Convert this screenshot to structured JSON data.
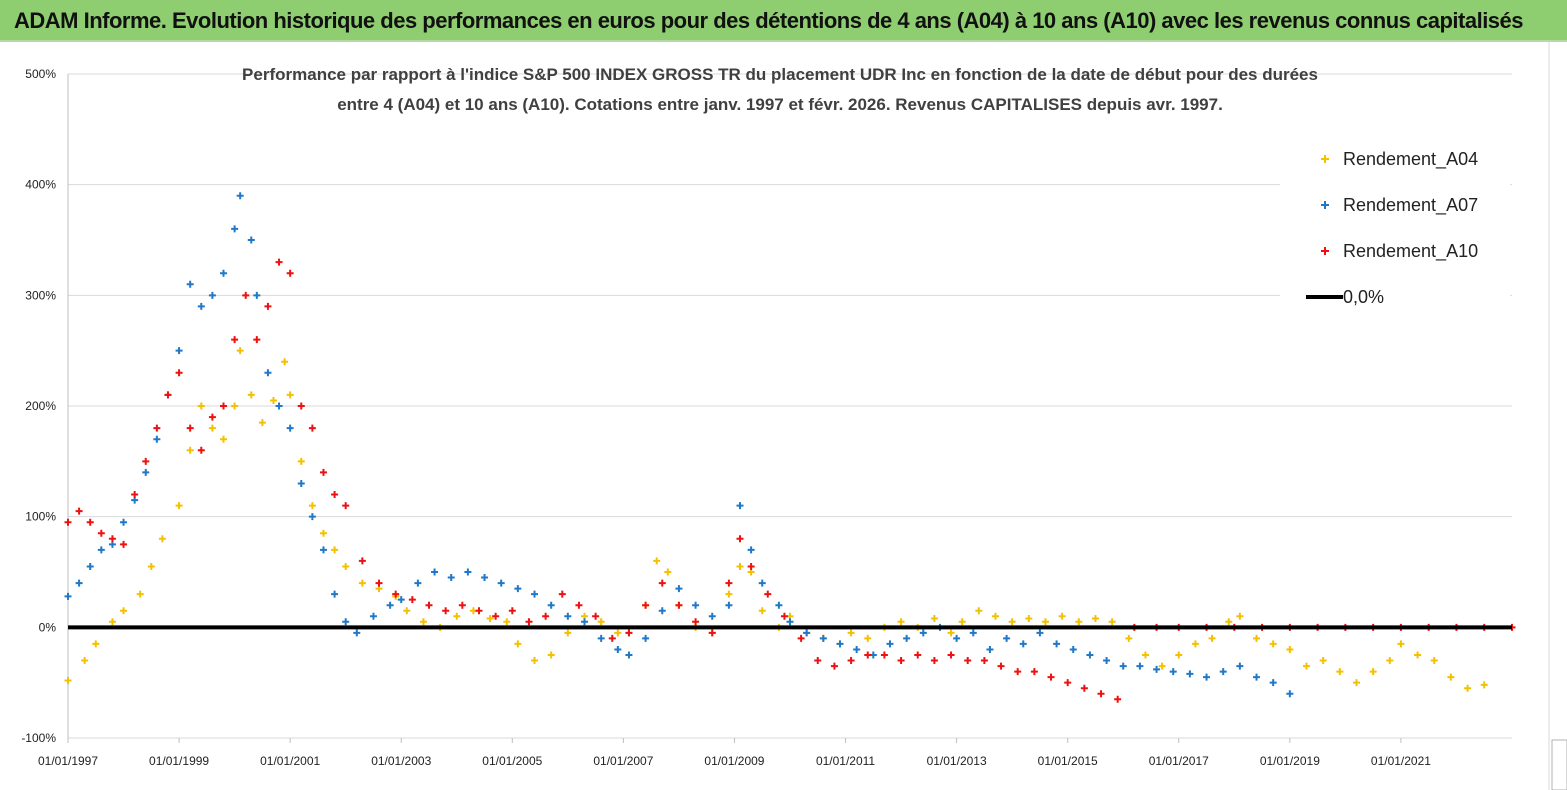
{
  "banner": {
    "title": "ADAM Informe. Evolution historique des performances en euros pour des détentions de 4 ans (A04) à 10 ans (A10) avec les revenus connus capitalisés"
  },
  "chart_data": {
    "type": "scatter",
    "title_lines": [
      "Performance par rapport à l'indice S&P 500 INDEX GROSS TR  du placement UDR Inc en fonction de la date de début pour des durées",
      "entre 4 (A04) et 10 ans (A10).  Cotations entre janv. 1997 et févr. 2026. Revenus CAPITALISES depuis avr. 1997."
    ],
    "xlabel": "",
    "ylabel": "",
    "x_tick_labels": [
      "01/01/1997",
      "01/01/1999",
      "01/01/2001",
      "01/01/2003",
      "01/01/2005",
      "01/01/2007",
      "01/01/2009",
      "01/01/2011",
      "01/01/2013",
      "01/01/2015",
      "01/01/2017",
      "01/01/2019",
      "01/01/2021"
    ],
    "y_tick_labels": [
      "-100%",
      "0%",
      "100%",
      "200%",
      "300%",
      "400%",
      "500%"
    ],
    "xlim": [
      1997.0,
      2023.0
    ],
    "ylim": [
      -100,
      500
    ],
    "grid": "horizontal",
    "legend_placement": "top-right",
    "reference_line": {
      "name": "0,0%",
      "value": 0,
      "color": "#000000"
    },
    "series": [
      {
        "name": "Rendement_A04",
        "color": "#f5c000",
        "points": [
          [
            1997.0,
            -48
          ],
          [
            1997.3,
            -30
          ],
          [
            1997.5,
            -15
          ],
          [
            1997.8,
            5
          ],
          [
            1998.0,
            15
          ],
          [
            1998.3,
            30
          ],
          [
            1998.5,
            55
          ],
          [
            1998.7,
            80
          ],
          [
            1999.0,
            110
          ],
          [
            1999.2,
            160
          ],
          [
            1999.4,
            200
          ],
          [
            1999.6,
            180
          ],
          [
            1999.8,
            170
          ],
          [
            2000.0,
            200
          ],
          [
            2000.1,
            250
          ],
          [
            2000.3,
            210
          ],
          [
            2000.5,
            185
          ],
          [
            2000.7,
            205
          ],
          [
            2000.9,
            240
          ],
          [
            2001.0,
            210
          ],
          [
            2001.2,
            150
          ],
          [
            2001.4,
            110
          ],
          [
            2001.6,
            85
          ],
          [
            2001.8,
            70
          ],
          [
            2002.0,
            55
          ],
          [
            2002.3,
            40
          ],
          [
            2002.6,
            35
          ],
          [
            2002.9,
            28
          ],
          [
            2003.1,
            15
          ],
          [
            2003.4,
            5
          ],
          [
            2003.7,
            0
          ],
          [
            2004.0,
            10
          ],
          [
            2004.3,
            15
          ],
          [
            2004.6,
            8
          ],
          [
            2004.9,
            5
          ],
          [
            2005.1,
            -15
          ],
          [
            2005.4,
            -30
          ],
          [
            2005.7,
            -25
          ],
          [
            2006.0,
            -5
          ],
          [
            2006.3,
            10
          ],
          [
            2006.6,
            5
          ],
          [
            2006.9,
            -5
          ],
          [
            2007.1,
            -5
          ],
          [
            2007.4,
            20
          ],
          [
            2007.6,
            60
          ],
          [
            2007.8,
            50
          ],
          [
            2008.0,
            20
          ],
          [
            2008.3,
            0
          ],
          [
            2008.6,
            -5
          ],
          [
            2008.9,
            30
          ],
          [
            2009.1,
            55
          ],
          [
            2009.3,
            50
          ],
          [
            2009.5,
            15
          ],
          [
            2009.8,
            0
          ],
          [
            2010.0,
            10
          ],
          [
            2010.3,
            -5
          ],
          [
            2010.6,
            -10
          ],
          [
            2010.9,
            -15
          ],
          [
            2011.1,
            -5
          ],
          [
            2011.4,
            -10
          ],
          [
            2011.7,
            0
          ],
          [
            2012.0,
            5
          ],
          [
            2012.3,
            0
          ],
          [
            2012.6,
            8
          ],
          [
            2012.9,
            -5
          ],
          [
            2013.1,
            5
          ],
          [
            2013.4,
            15
          ],
          [
            2013.7,
            10
          ],
          [
            2014.0,
            5
          ],
          [
            2014.3,
            8
          ],
          [
            2014.6,
            5
          ],
          [
            2014.9,
            10
          ],
          [
            2015.2,
            5
          ],
          [
            2015.5,
            8
          ],
          [
            2015.8,
            5
          ],
          [
            2016.1,
            -10
          ],
          [
            2016.4,
            -25
          ],
          [
            2016.7,
            -35
          ],
          [
            2017.0,
            -25
          ],
          [
            2017.3,
            -15
          ],
          [
            2017.6,
            -10
          ],
          [
            2017.9,
            5
          ],
          [
            2018.1,
            10
          ],
          [
            2018.4,
            -10
          ],
          [
            2018.7,
            -15
          ],
          [
            2019.0,
            -20
          ],
          [
            2019.3,
            -35
          ],
          [
            2019.6,
            -30
          ],
          [
            2019.9,
            -40
          ],
          [
            2020.2,
            -50
          ],
          [
            2020.5,
            -40
          ],
          [
            2020.8,
            -30
          ],
          [
            2021.0,
            -15
          ],
          [
            2021.3,
            -25
          ],
          [
            2021.6,
            -30
          ],
          [
            2021.9,
            -45
          ],
          [
            2022.2,
            -55
          ],
          [
            2022.5,
            -52
          ]
        ]
      },
      {
        "name": "Rendement_A07",
        "color": "#1f78c8",
        "points": [
          [
            1997.0,
            28
          ],
          [
            1997.2,
            40
          ],
          [
            1997.4,
            55
          ],
          [
            1997.6,
            70
          ],
          [
            1997.8,
            75
          ],
          [
            1998.0,
            95
          ],
          [
            1998.2,
            115
          ],
          [
            1998.4,
            140
          ],
          [
            1998.6,
            170
          ],
          [
            1998.8,
            210
          ],
          [
            1999.0,
            250
          ],
          [
            1999.2,
            310
          ],
          [
            1999.4,
            290
          ],
          [
            1999.6,
            300
          ],
          [
            1999.8,
            320
          ],
          [
            2000.0,
            360
          ],
          [
            2000.1,
            390
          ],
          [
            2000.3,
            350
          ],
          [
            2000.4,
            300
          ],
          [
            2000.6,
            230
          ],
          [
            2000.8,
            200
          ],
          [
            2001.0,
            180
          ],
          [
            2001.2,
            130
          ],
          [
            2001.4,
            100
          ],
          [
            2001.6,
            70
          ],
          [
            2001.8,
            30
          ],
          [
            2002.0,
            5
          ],
          [
            2002.2,
            -5
          ],
          [
            2002.5,
            10
          ],
          [
            2002.8,
            20
          ],
          [
            2003.0,
            25
          ],
          [
            2003.3,
            40
          ],
          [
            2003.6,
            50
          ],
          [
            2003.9,
            45
          ],
          [
            2004.2,
            50
          ],
          [
            2004.5,
            45
          ],
          [
            2004.8,
            40
          ],
          [
            2005.1,
            35
          ],
          [
            2005.4,
            30
          ],
          [
            2005.7,
            20
          ],
          [
            2006.0,
            10
          ],
          [
            2006.3,
            5
          ],
          [
            2006.6,
            -10
          ],
          [
            2006.9,
            -20
          ],
          [
            2007.1,
            -25
          ],
          [
            2007.4,
            -10
          ],
          [
            2007.7,
            15
          ],
          [
            2008.0,
            35
          ],
          [
            2008.3,
            20
          ],
          [
            2008.6,
            10
          ],
          [
            2008.9,
            20
          ],
          [
            2009.1,
            110
          ],
          [
            2009.3,
            70
          ],
          [
            2009.5,
            40
          ],
          [
            2009.8,
            20
          ],
          [
            2010.0,
            5
          ],
          [
            2010.3,
            -5
          ],
          [
            2010.6,
            -10
          ],
          [
            2010.9,
            -15
          ],
          [
            2011.2,
            -20
          ],
          [
            2011.5,
            -25
          ],
          [
            2011.8,
            -15
          ],
          [
            2012.1,
            -10
          ],
          [
            2012.4,
            -5
          ],
          [
            2012.7,
            0
          ],
          [
            2013.0,
            -10
          ],
          [
            2013.3,
            -5
          ],
          [
            2013.6,
            -20
          ],
          [
            2013.9,
            -10
          ],
          [
            2014.2,
            -15
          ],
          [
            2014.5,
            -5
          ],
          [
            2014.8,
            -15
          ],
          [
            2015.1,
            -20
          ],
          [
            2015.4,
            -25
          ],
          [
            2015.7,
            -30
          ],
          [
            2016.0,
            -35
          ],
          [
            2016.3,
            -35
          ],
          [
            2016.6,
            -38
          ],
          [
            2016.9,
            -40
          ],
          [
            2017.2,
            -42
          ],
          [
            2017.5,
            -45
          ],
          [
            2017.8,
            -40
          ],
          [
            2018.1,
            -35
          ],
          [
            2018.4,
            -45
          ],
          [
            2018.7,
            -50
          ],
          [
            2019.0,
            -60
          ]
        ]
      },
      {
        "name": "Rendement_A10",
        "color": "#ee1111",
        "points": [
          [
            1997.0,
            95
          ],
          [
            1997.2,
            105
          ],
          [
            1997.4,
            95
          ],
          [
            1997.6,
            85
          ],
          [
            1997.8,
            80
          ],
          [
            1998.0,
            75
          ],
          [
            1998.2,
            120
          ],
          [
            1998.4,
            150
          ],
          [
            1998.6,
            180
          ],
          [
            1998.8,
            210
          ],
          [
            1999.0,
            230
          ],
          [
            1999.2,
            180
          ],
          [
            1999.4,
            160
          ],
          [
            1999.6,
            190
          ],
          [
            1999.8,
            200
          ],
          [
            2000.0,
            260
          ],
          [
            2000.2,
            300
          ],
          [
            2000.4,
            260
          ],
          [
            2000.6,
            290
          ],
          [
            2000.8,
            330
          ],
          [
            2001.0,
            320
          ],
          [
            2001.2,
            200
          ],
          [
            2001.4,
            180
          ],
          [
            2001.6,
            140
          ],
          [
            2001.8,
            120
          ],
          [
            2002.0,
            110
          ],
          [
            2002.3,
            60
          ],
          [
            2002.6,
            40
          ],
          [
            2002.9,
            30
          ],
          [
            2003.2,
            25
          ],
          [
            2003.5,
            20
          ],
          [
            2003.8,
            15
          ],
          [
            2004.1,
            20
          ],
          [
            2004.4,
            15
          ],
          [
            2004.7,
            10
          ],
          [
            2005.0,
            15
          ],
          [
            2005.3,
            5
          ],
          [
            2005.6,
            10
          ],
          [
            2005.9,
            30
          ],
          [
            2006.2,
            20
          ],
          [
            2006.5,
            10
          ],
          [
            2006.8,
            -10
          ],
          [
            2007.1,
            -5
          ],
          [
            2007.4,
            20
          ],
          [
            2007.7,
            40
          ],
          [
            2008.0,
            20
          ],
          [
            2008.3,
            5
          ],
          [
            2008.6,
            -5
          ],
          [
            2008.9,
            40
          ],
          [
            2009.1,
            80
          ],
          [
            2009.3,
            55
          ],
          [
            2009.6,
            30
          ],
          [
            2009.9,
            10
          ],
          [
            2010.2,
            -10
          ],
          [
            2010.5,
            -30
          ],
          [
            2010.8,
            -35
          ],
          [
            2011.1,
            -30
          ],
          [
            2011.4,
            -25
          ],
          [
            2011.7,
            -25
          ],
          [
            2012.0,
            -30
          ],
          [
            2012.3,
            -25
          ],
          [
            2012.6,
            -30
          ],
          [
            2012.9,
            -25
          ],
          [
            2013.2,
            -30
          ],
          [
            2013.5,
            -30
          ],
          [
            2013.8,
            -35
          ],
          [
            2014.1,
            -40
          ],
          [
            2014.4,
            -40
          ],
          [
            2014.7,
            -45
          ],
          [
            2015.0,
            -50
          ],
          [
            2015.3,
            -55
          ],
          [
            2015.6,
            -60
          ],
          [
            2015.9,
            -65
          ],
          [
            2016.2,
            0
          ],
          [
            2016.6,
            0
          ],
          [
            2017.0,
            0
          ],
          [
            2017.5,
            0
          ],
          [
            2018.0,
            0
          ],
          [
            2018.5,
            0
          ],
          [
            2019.0,
            0
          ],
          [
            2019.5,
            0
          ],
          [
            2020.0,
            0
          ],
          [
            2020.5,
            0
          ],
          [
            2021.0,
            0
          ],
          [
            2021.5,
            0
          ],
          [
            2022.0,
            0
          ],
          [
            2022.5,
            0
          ],
          [
            2023.0,
            0
          ]
        ]
      }
    ]
  }
}
